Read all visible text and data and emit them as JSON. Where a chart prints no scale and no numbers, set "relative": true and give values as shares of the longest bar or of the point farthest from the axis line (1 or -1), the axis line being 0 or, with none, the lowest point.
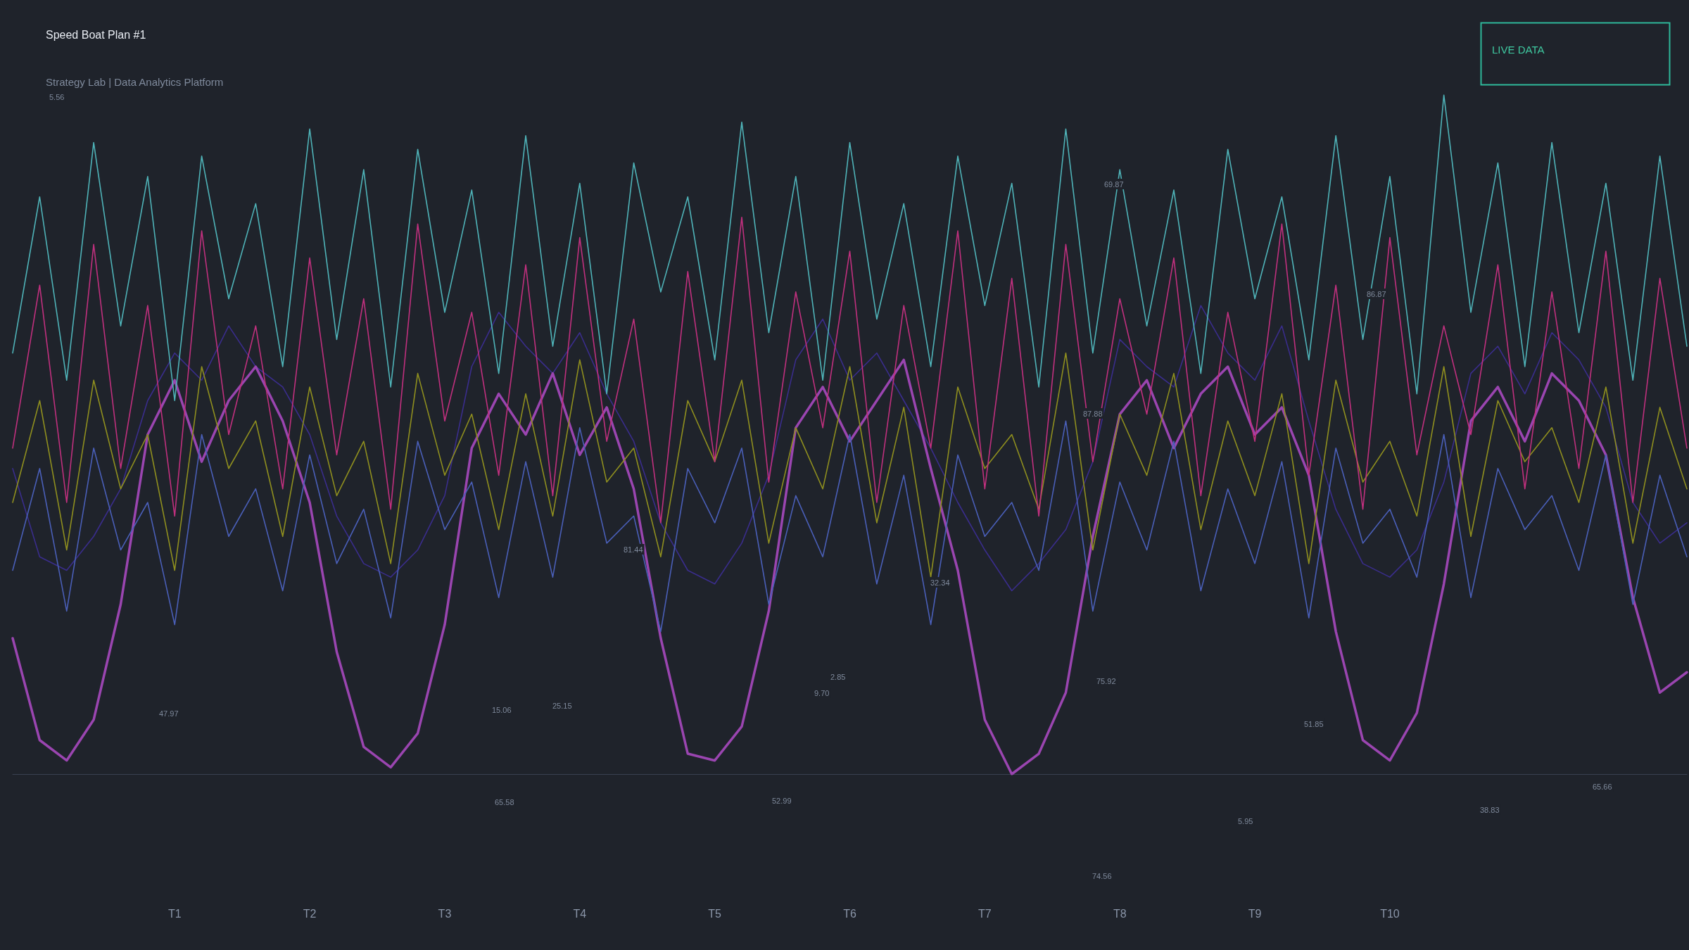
{
  "chart_data": {
    "type": "line",
    "title": "Speed Boat Plan #1",
    "subtitle": "Strategy Lab | Data Analytics Platform",
    "relative": true,
    "marker": "none",
    "line_style": "solid",
    "categories": [
      null,
      null,
      null,
      null,
      null,
      null,
      "T1",
      null,
      null,
      null,
      null,
      "T2",
      null,
      null,
      null,
      null,
      "T3",
      null,
      null,
      null,
      null,
      "T4",
      null,
      null,
      null,
      null,
      "T5",
      null,
      null,
      null,
      null,
      "T6",
      null,
      null,
      null,
      null,
      "T7",
      null,
      null,
      null,
      null,
      "T8",
      null,
      null,
      null,
      null,
      "T9",
      null,
      null,
      null,
      null,
      "T10",
      null,
      null,
      null,
      null,
      null,
      null,
      null,
      null,
      null,
      null,
      null
    ],
    "series": [
      {
        "color": "#3a2d8c",
        "values": [
          0.45,
          0.32,
          0.3,
          0.35,
          0.42,
          0.55,
          0.62,
          0.58,
          0.66,
          0.6,
          0.57,
          0.5,
          0.38,
          0.31,
          0.29,
          0.33,
          0.41,
          0.6,
          0.68,
          0.63,
          0.59,
          0.65,
          0.56,
          0.49,
          0.37,
          0.3,
          0.28,
          0.34,
          0.44,
          0.61,
          0.67,
          0.58,
          0.62,
          0.55,
          0.48,
          0.4,
          0.33,
          0.27,
          0.31,
          0.36,
          0.46,
          0.64,
          0.6,
          0.57,
          0.69,
          0.62,
          0.58,
          0.66,
          0.52,
          0.39,
          0.31,
          0.29,
          0.33,
          0.43,
          0.59,
          0.63,
          0.56,
          0.65,
          0.61,
          0.54,
          0.4,
          0.34,
          0.37
        ]
      },
      {
        "color": "#9a45b0",
        "values": [
          0.2,
          0.05,
          0.02,
          0.08,
          0.25,
          0.5,
          0.58,
          0.46,
          0.55,
          0.6,
          0.52,
          0.4,
          0.18,
          0.04,
          0.01,
          0.06,
          0.22,
          0.48,
          0.56,
          0.5,
          0.59,
          0.47,
          0.54,
          0.42,
          0.2,
          0.03,
          0.02,
          0.07,
          0.24,
          0.51,
          0.57,
          0.49,
          0.55,
          0.61,
          0.45,
          0.3,
          0.08,
          0.0,
          0.03,
          0.12,
          0.35,
          0.53,
          0.58,
          0.48,
          0.56,
          0.6,
          0.5,
          0.54,
          0.44,
          0.21,
          0.05,
          0.02,
          0.09,
          0.28,
          0.52,
          0.57,
          0.49,
          0.59,
          0.55,
          0.47,
          0.26,
          0.12,
          0.15
        ]
      },
      {
        "color": "#4a5fb8",
        "values": [
          0.3,
          0.45,
          0.24,
          0.48,
          0.33,
          0.4,
          0.22,
          0.5,
          0.35,
          0.42,
          0.27,
          0.47,
          0.31,
          0.39,
          0.23,
          0.49,
          0.36,
          0.43,
          0.26,
          0.46,
          0.29,
          0.51,
          0.34,
          0.38,
          0.21,
          0.45,
          0.37,
          0.48,
          0.25,
          0.41,
          0.32,
          0.5,
          0.28,
          0.44,
          0.22,
          0.47,
          0.35,
          0.4,
          0.3,
          0.52,
          0.24,
          0.43,
          0.33,
          0.49,
          0.27,
          0.42,
          0.31,
          0.46,
          0.23,
          0.48,
          0.34,
          0.39,
          0.29,
          0.5,
          0.26,
          0.45,
          0.36,
          0.41,
          0.3,
          0.47,
          0.25,
          0.44,
          0.32
        ]
      },
      {
        "color": "#8f8f1f",
        "values": [
          0.4,
          0.55,
          0.33,
          0.58,
          0.42,
          0.5,
          0.3,
          0.6,
          0.45,
          0.52,
          0.35,
          0.57,
          0.41,
          0.49,
          0.31,
          0.59,
          0.44,
          0.53,
          0.36,
          0.56,
          0.38,
          0.61,
          0.43,
          0.48,
          0.32,
          0.55,
          0.46,
          0.58,
          0.34,
          0.51,
          0.42,
          0.6,
          0.37,
          0.54,
          0.29,
          0.57,
          0.45,
          0.5,
          0.39,
          0.62,
          0.33,
          0.53,
          0.44,
          0.59,
          0.36,
          0.52,
          0.41,
          0.56,
          0.31,
          0.58,
          0.43,
          0.49,
          0.38,
          0.6,
          0.35,
          0.55,
          0.46,
          0.51,
          0.4,
          0.57,
          0.34,
          0.54,
          0.42
        ]
      },
      {
        "color": "#c0307e",
        "values": [
          0.48,
          0.72,
          0.4,
          0.78,
          0.45,
          0.69,
          0.38,
          0.8,
          0.5,
          0.66,
          0.42,
          0.76,
          0.47,
          0.7,
          0.39,
          0.81,
          0.52,
          0.68,
          0.44,
          0.75,
          0.41,
          0.79,
          0.49,
          0.67,
          0.37,
          0.74,
          0.46,
          0.82,
          0.43,
          0.71,
          0.51,
          0.77,
          0.4,
          0.69,
          0.48,
          0.8,
          0.42,
          0.73,
          0.38,
          0.78,
          0.46,
          0.7,
          0.53,
          0.76,
          0.41,
          0.68,
          0.49,
          0.81,
          0.44,
          0.72,
          0.39,
          0.79,
          0.47,
          0.66,
          0.5,
          0.75,
          0.42,
          0.71,
          0.45,
          0.77,
          0.4,
          0.73,
          0.48
        ]
      },
      {
        "color": "#4fb3b8",
        "values": [
          0.62,
          0.85,
          0.58,
          0.93,
          0.66,
          0.88,
          0.55,
          0.91,
          0.7,
          0.84,
          0.6,
          0.95,
          0.64,
          0.89,
          0.57,
          0.92,
          0.68,
          0.86,
          0.59,
          0.94,
          0.63,
          0.87,
          0.56,
          0.9,
          0.71,
          0.85,
          0.61,
          0.96,
          0.65,
          0.88,
          0.58,
          0.93,
          0.67,
          0.84,
          0.6,
          0.91,
          0.69,
          0.87,
          0.57,
          0.95,
          0.62,
          0.89,
          0.66,
          0.86,
          0.59,
          0.92,
          0.7,
          0.85,
          0.61,
          0.94,
          0.64,
          0.88,
          0.56,
          1,
          0.68,
          0.9,
          0.6,
          0.93,
          0.65,
          0.87,
          0.58,
          0.91,
          0.63
        ]
      }
    ],
    "annotations": [
      "LIVE DATA",
      "5.56",
      "47.97",
      "15.06",
      "25.15",
      "65.58",
      "52.99",
      "2.85",
      "9.70",
      "32.34",
      "75.92",
      "74.56",
      "5.95",
      "51.85",
      "38.83",
      "65.66",
      "81.44",
      "69.87",
      "86.87",
      "87.88"
    ]
  }
}
